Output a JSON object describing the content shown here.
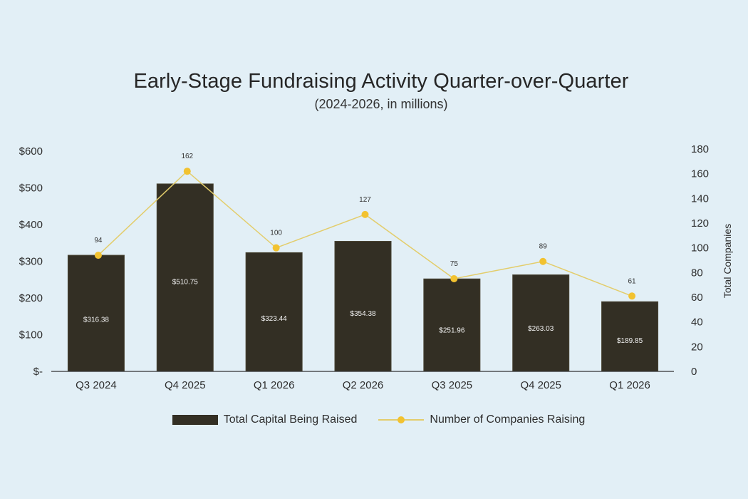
{
  "chart_data": {
    "type": "bar",
    "title": "Early-Stage Fundraising Activity Quarter-over-Quarter",
    "subtitle": "(2024-2026, in millions)",
    "categories": [
      "Q3 2024",
      "Q4 2025",
      "Q1 2026",
      "Q2 2026",
      "Q3 2025",
      "Q4 2025",
      "Q1 2026"
    ],
    "series": [
      {
        "name": "Total Capital Being Raised",
        "type": "bar",
        "axis": "left",
        "values": [
          316.38,
          510.75,
          323.44,
          354.38,
          251.96,
          263.03,
          189.85
        ],
        "labels": [
          "$316.38",
          "$510.75",
          "$323.44",
          "$354.38",
          "$251.96",
          "$263.03",
          "$189.85"
        ]
      },
      {
        "name": "Number of Companies Raising",
        "type": "line",
        "axis": "right",
        "values": [
          94,
          162,
          100,
          127,
          75,
          89,
          61
        ],
        "labels": [
          "94",
          "162",
          "100",
          "127",
          "75",
          "89",
          "61"
        ]
      }
    ],
    "y_left": {
      "range": [
        0,
        600
      ],
      "ticks": [
        0,
        100,
        200,
        300,
        400,
        500,
        600
      ],
      "tick_labels": [
        "$-",
        "$100",
        "$200",
        "$300",
        "$400",
        "$500",
        "$600"
      ]
    },
    "y_right": {
      "label": "Total Companies",
      "range": [
        0,
        180
      ],
      "ticks": [
        0,
        20,
        40,
        60,
        80,
        100,
        120,
        140,
        160,
        180
      ],
      "tick_labels": [
        "0",
        "20",
        "40",
        "60",
        "80",
        "100",
        "120",
        "140",
        "160",
        "180"
      ]
    },
    "grid": false,
    "legend_position": "bottom",
    "colors": {
      "bar": "#332f24",
      "line": "#e3cd6b",
      "marker": "#f2c230",
      "background": "#e2eff6"
    }
  }
}
